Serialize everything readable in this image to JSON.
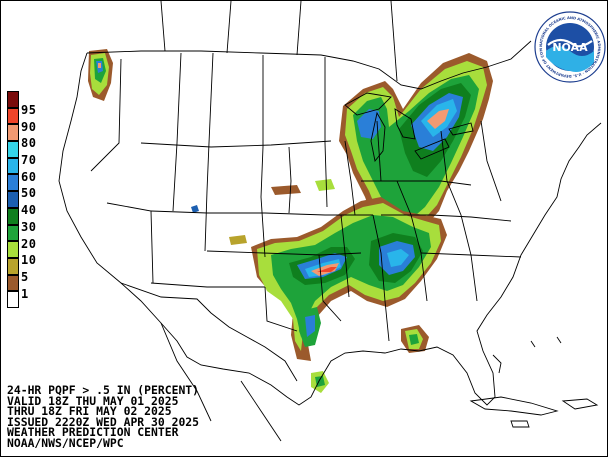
{
  "legend": {
    "items": [
      {
        "label": "95",
        "color": "#7a0b0b"
      },
      {
        "label": "90",
        "color": "#f0452a"
      },
      {
        "label": "80",
        "color": "#f29a72"
      },
      {
        "label": "70",
        "color": "#35d4e8"
      },
      {
        "label": "60",
        "color": "#29b5ea"
      },
      {
        "label": "50",
        "color": "#2a7fd8"
      },
      {
        "label": "40",
        "color": "#1c5fb0"
      },
      {
        "label": "30",
        "color": "#0f7f1e"
      },
      {
        "label": "20",
        "color": "#1ea33a"
      },
      {
        "label": "10",
        "color": "#a8de3c"
      },
      {
        "label": "5",
        "color": "#b8a32c"
      },
      {
        "label": "1",
        "color": "#9b5a2c"
      },
      {
        "label": "",
        "color": "#ffffff"
      }
    ]
  },
  "caption": {
    "line1": "24-HR PQPF > .5 IN (PERCENT)",
    "line2": "VALID 18Z THU MAY 01 2025",
    "line3": "THRU 18Z FRI MAY 02 2025",
    "line4": "ISSUED 2220Z WED APR 30 2025",
    "line5": "WEATHER PREDICTION CENTER",
    "line6": "NOAA/NWS/NCEP/WPC"
  },
  "logo": {
    "text": "NOAA",
    "ring_text": "NATIONAL OCEANIC AND ATMOSPHERIC ADMINISTRATION · U.S. DEPARTMENT OF COMMERCE"
  }
}
